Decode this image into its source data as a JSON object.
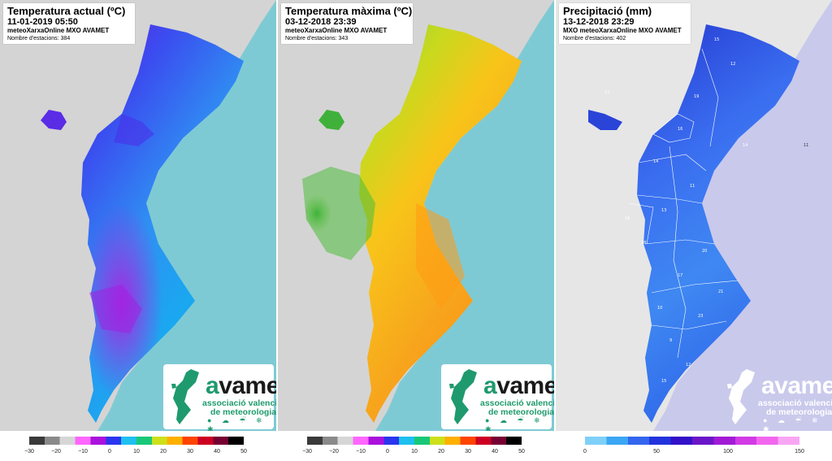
{
  "panels": [
    {
      "title": "Temperatura actual (ºC)",
      "date": "11-01-2019 05:50",
      "source": "meteoXarxaOnline MXO AVAMET",
      "count": "Nombre d'estacions: 384",
      "land_colors": [
        "#5a19e6",
        "#3b4cf0",
        "#2f7ff2",
        "#1aa0f0",
        "#a81ee0"
      ],
      "sea_color": "#7ecad4"
    },
    {
      "title": "Temperatura màxima (ºC)",
      "date": "03-12-2018 23:39",
      "source": "meteoXarxaOnline MXO AVAMET",
      "count": "Nombre d'estacions: 343",
      "land_colors": [
        "#f5a21c",
        "#f8c41a",
        "#c9d91e",
        "#6cc83a",
        "#ff8a12"
      ],
      "sea_color": "#7ecad4"
    },
    {
      "title": "Precipitació (mm)",
      "date": "13-12-2018 23:29",
      "source": "MXO meteoXarxaOnline MXO AVAMET",
      "count": "Nombre d'estacions: 402",
      "land_colors": [
        "#3a7df0",
        "#2b5fe8",
        "#3f96f2",
        "#2a44d8"
      ],
      "sea_color": "#c9c9ec"
    }
  ],
  "logo": {
    "word_a": "a",
    "word_rest": "vamet",
    "line1": "associació valenciana",
    "line2": "de meteorologia",
    "icons": "● ☁ ☔ ❄ ✱"
  },
  "temp_scale": {
    "labels": [
      "−30",
      "−20",
      "−10",
      "0",
      "10",
      "20",
      "30",
      "40",
      "50"
    ],
    "colors": [
      "#3a3a3a",
      "#8a8a8a",
      "#d6d6d6",
      "#ff66ff",
      "#aa11dd",
      "#2a35ee",
      "#1ec0f0",
      "#18c878",
      "#cde01a",
      "#ffb000",
      "#ff4400",
      "#cc0022",
      "#770033",
      "#000000"
    ]
  },
  "precip_scale": {
    "labels": [
      "0",
      "50",
      "100",
      "150"
    ],
    "colors": [
      "#7fd0f8",
      "#3aa6f4",
      "#3366ee",
      "#2233dd",
      "#3311c8",
      "#6a16c8",
      "#a11ad6",
      "#d23ae6",
      "#f266ee",
      "#f8a6f4"
    ]
  },
  "station_values": [
    "15",
    "12",
    "19",
    "22",
    "16",
    "14",
    "11",
    "13",
    "18",
    "20",
    "17",
    "21",
    "10",
    "23",
    "9",
    "12",
    "15",
    "14",
    "16",
    "11"
  ]
}
